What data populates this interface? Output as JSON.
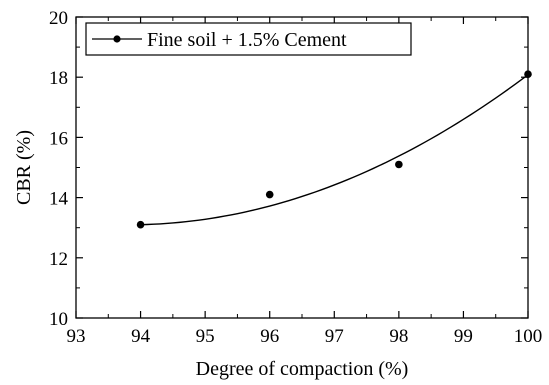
{
  "chart_data": {
    "type": "scatter",
    "xlabel": "Degree of compaction (%)",
    "ylabel": "CBR (%)",
    "xlim": [
      93,
      100
    ],
    "ylim": [
      10,
      20
    ],
    "x_ticks": [
      93,
      94,
      95,
      96,
      97,
      98,
      99,
      100
    ],
    "y_ticks": [
      10,
      12,
      14,
      16,
      18,
      20
    ],
    "grid": false,
    "legend_position": "top-left",
    "series": [
      {
        "name": "Fine soil + 1.5% Cement",
        "points": [
          {
            "x": 94,
            "y": 13.1
          },
          {
            "x": 96,
            "y": 14.1
          },
          {
            "x": 98,
            "y": 15.1
          },
          {
            "x": 100,
            "y": 18.1
          }
        ],
        "trendline": {
          "type": "polynomial",
          "x_range": [
            94,
            100
          ],
          "coefficients": [
            13.1,
            0.05,
            0.13
          ]
        },
        "color": "#000000"
      }
    ]
  }
}
